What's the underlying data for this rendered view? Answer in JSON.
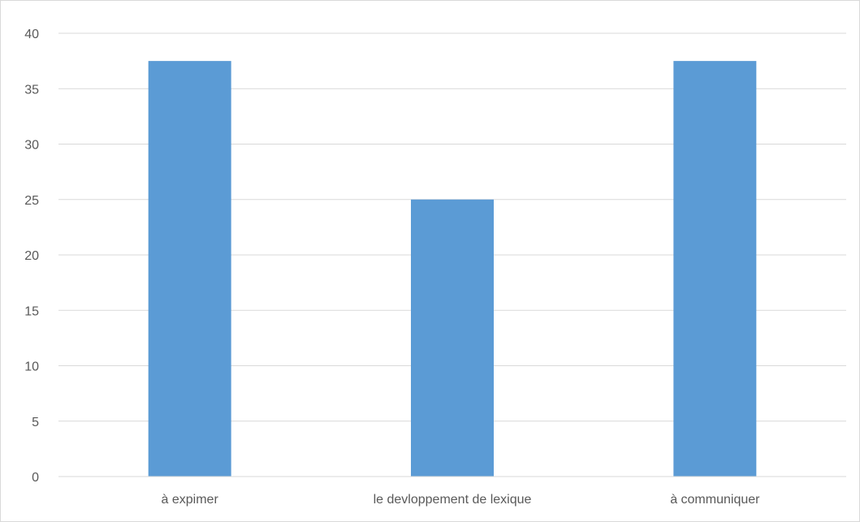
{
  "chart_data": {
    "type": "bar",
    "title": "",
    "xlabel": "",
    "ylabel": "",
    "categories": [
      "à expimer",
      "le devloppement de lexique",
      "à communiquer"
    ],
    "values": [
      37.5,
      25,
      37.5
    ],
    "ylim": [
      0,
      40
    ],
    "yticks": [
      0,
      5,
      10,
      15,
      20,
      25,
      30,
      35,
      40
    ],
    "grid": true,
    "legend": "none",
    "bar_color": "#5b9bd5"
  }
}
